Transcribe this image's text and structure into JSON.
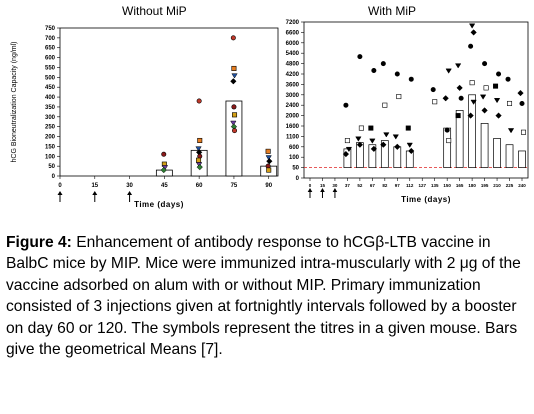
{
  "chart_data": [
    {
      "type": "bar",
      "title": "Without MiP",
      "xlabel": "Time (days)",
      "ylabel": "hCG Bioneutralization Capacity (ng/ml)",
      "ylim": [
        0,
        750
      ],
      "yticks": [
        "0",
        "50",
        "100",
        "150",
        "200",
        "250",
        "300",
        "350",
        "400",
        "450",
        "500",
        "550",
        "600",
        "650",
        "700",
        "750"
      ],
      "xticks": [
        "0",
        "15",
        "30",
        "45",
        "60",
        "75",
        "90"
      ],
      "bars": [
        {
          "x": 45,
          "value": 30
        },
        {
          "x": 60,
          "value": 130
        },
        {
          "x": 75,
          "value": 380
        },
        {
          "x": 90,
          "value": 50
        }
      ],
      "points": [
        {
          "x": 45,
          "y": 110
        },
        {
          "x": 45,
          "y": 60
        },
        {
          "x": 45,
          "y": 45
        },
        {
          "x": 45,
          "y": 30
        },
        {
          "x": 60,
          "y": 380
        },
        {
          "x": 60,
          "y": 180
        },
        {
          "x": 60,
          "y": 140
        },
        {
          "x": 60,
          "y": 120
        },
        {
          "x": 60,
          "y": 100
        },
        {
          "x": 60,
          "y": 80
        },
        {
          "x": 60,
          "y": 60
        },
        {
          "x": 60,
          "y": 45
        },
        {
          "x": 75,
          "y": 700
        },
        {
          "x": 75,
          "y": 545
        },
        {
          "x": 75,
          "y": 510
        },
        {
          "x": 75,
          "y": 480
        },
        {
          "x": 75,
          "y": 350
        },
        {
          "x": 75,
          "y": 310
        },
        {
          "x": 75,
          "y": 270
        },
        {
          "x": 75,
          "y": 250
        },
        {
          "x": 75,
          "y": 230
        },
        {
          "x": 90,
          "y": 125
        },
        {
          "x": 90,
          "y": 95
        },
        {
          "x": 90,
          "y": 75
        },
        {
          "x": 90,
          "y": 50
        },
        {
          "x": 90,
          "y": 30
        }
      ],
      "immunization_days": [
        0,
        15,
        30
      ],
      "booster_day": 60
    },
    {
      "type": "bar",
      "title": "With MiP",
      "xlabel": "Time (days)",
      "ylim": [
        0,
        7200
      ],
      "yticks": [
        "0",
        "50",
        "100",
        "600",
        "1100",
        "1600",
        "2000",
        "2400",
        "3000",
        "3600",
        "4200",
        "4800",
        "5400",
        "6000",
        "6600",
        "7200"
      ],
      "xticks": [
        "0",
        "15",
        "30",
        "37",
        "52",
        "67",
        "82",
        "97",
        "112",
        "127",
        "135",
        "150",
        "165",
        "180",
        "195",
        "210",
        "225",
        "240"
      ],
      "bars": [
        {
          "x": "37",
          "value": 500
        },
        {
          "x": "52",
          "value": 800
        },
        {
          "x": "67",
          "value": 700
        },
        {
          "x": "82",
          "value": 900
        },
        {
          "x": "97",
          "value": 600
        },
        {
          "x": "112",
          "value": 400
        },
        {
          "x": "150",
          "value": 1500
        },
        {
          "x": "165",
          "value": 2200
        },
        {
          "x": "180",
          "value": 3000
        },
        {
          "x": "195",
          "value": 1700
        },
        {
          "x": "210",
          "value": 1000
        },
        {
          "x": "225",
          "value": 700
        },
        {
          "x": "240",
          "value": 400
        }
      ],
      "points": [
        {
          "x": "37",
          "y": 2400
        },
        {
          "x": "37",
          "y": 900
        },
        {
          "x": "37",
          "y": 500
        },
        {
          "x": "37",
          "y": 250
        },
        {
          "x": "52",
          "y": 5200
        },
        {
          "x": "52",
          "y": 1500
        },
        {
          "x": "52",
          "y": 1000
        },
        {
          "x": "52",
          "y": 700
        },
        {
          "x": "67",
          "y": 4400
        },
        {
          "x": "67",
          "y": 1500
        },
        {
          "x": "67",
          "y": 900
        },
        {
          "x": "67",
          "y": 500
        },
        {
          "x": "82",
          "y": 4800
        },
        {
          "x": "82",
          "y": 2400
        },
        {
          "x": "82",
          "y": 1200
        },
        {
          "x": "82",
          "y": 700
        },
        {
          "x": "97",
          "y": 4200
        },
        {
          "x": "97",
          "y": 2900
        },
        {
          "x": "97",
          "y": 1100
        },
        {
          "x": "97",
          "y": 600
        },
        {
          "x": "112",
          "y": 3900
        },
        {
          "x": "112",
          "y": 1500
        },
        {
          "x": "112",
          "y": 700
        },
        {
          "x": "112",
          "y": 400
        },
        {
          "x": "135",
          "y": 3300
        },
        {
          "x": "135",
          "y": 2600
        },
        {
          "x": "150",
          "y": 4400
        },
        {
          "x": "150",
          "y": 2800
        },
        {
          "x": "150",
          "y": 1400
        },
        {
          "x": "150",
          "y": 900
        },
        {
          "x": "165",
          "y": 4700
        },
        {
          "x": "165",
          "y": 3400
        },
        {
          "x": "165",
          "y": 2800
        },
        {
          "x": "165",
          "y": 2000
        },
        {
          "x": "180",
          "y": 7000
        },
        {
          "x": "180",
          "y": 6600
        },
        {
          "x": "180",
          "y": 5800
        },
        {
          "x": "180",
          "y": 3700
        },
        {
          "x": "180",
          "y": 2600
        },
        {
          "x": "180",
          "y": 2000
        },
        {
          "x": "195",
          "y": 4800
        },
        {
          "x": "195",
          "y": 3400
        },
        {
          "x": "195",
          "y": 2900
        },
        {
          "x": "195",
          "y": 2200
        },
        {
          "x": "210",
          "y": 4200
        },
        {
          "x": "210",
          "y": 3500
        },
        {
          "x": "210",
          "y": 2700
        },
        {
          "x": "210",
          "y": 2000
        },
        {
          "x": "225",
          "y": 3900
        },
        {
          "x": "225",
          "y": 2500
        },
        {
          "x": "225",
          "y": 1400
        },
        {
          "x": "240",
          "y": 3100
        },
        {
          "x": "240",
          "y": 2500
        },
        {
          "x": "240",
          "y": 1300
        }
      ],
      "immunization_days": [
        "0",
        "15",
        "30"
      ],
      "booster_day": "120"
    }
  ],
  "caption": {
    "label": "Figure 4:",
    "text": " Enhancement of antibody response to hCGβ-LTB vaccine in BalbC mice by MIP. Mice were immunized intra-muscularly with 2 μg of the vaccine adsorbed on alum with or without MIP. Primary immunization consisted of 3 injections given at fortnightly intervals followed by a booster on day 60 or 120. The symbols represent the titres in a given mouse. Bars give the geometrical Means [7]."
  }
}
